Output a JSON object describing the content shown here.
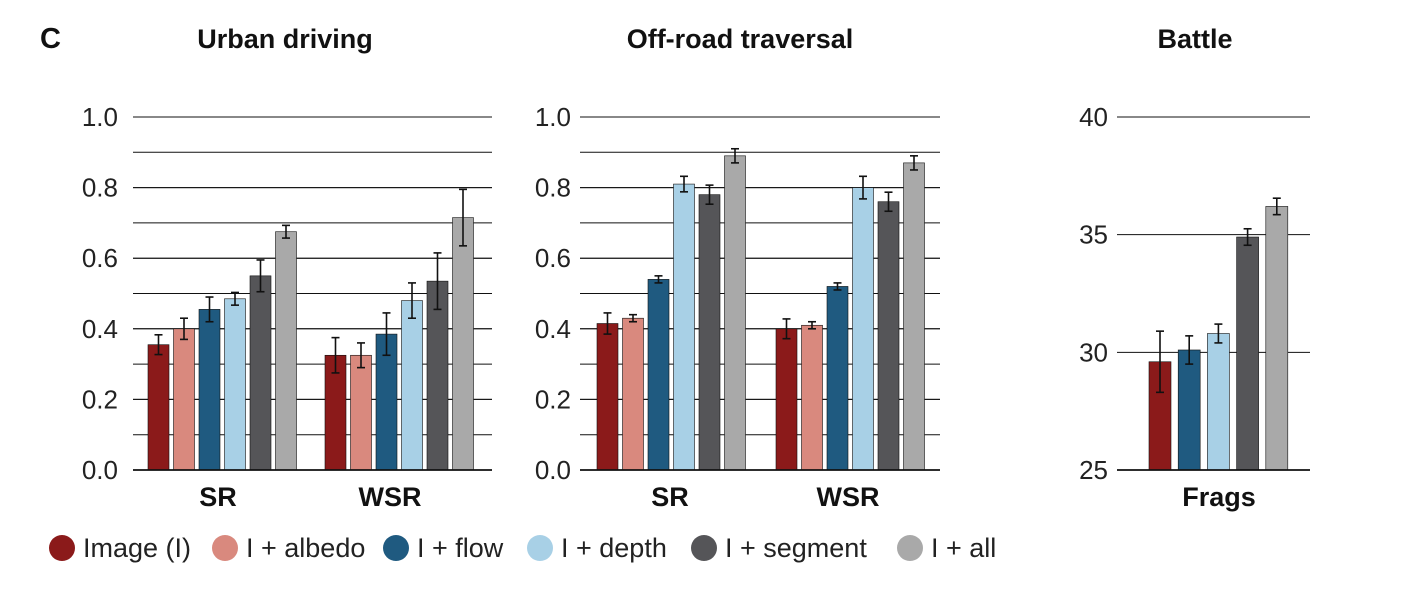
{
  "panel_label": "C",
  "legend": [
    {
      "label": "Image (I)",
      "color": "#8b1a1a"
    },
    {
      "label": "I + albedo",
      "color": "#d9897e"
    },
    {
      "label": "I + flow",
      "color": "#1f5a80"
    },
    {
      "label": "I + depth",
      "color": "#a8d0e6"
    },
    {
      "label": "I + segment",
      "color": "#555558"
    },
    {
      "label": "I + all",
      "color": "#a9a9a9"
    }
  ],
  "chart_data": [
    {
      "type": "bar",
      "title": "Urban driving",
      "ylim": [
        0,
        1.0
      ],
      "yticks": [
        "0.0",
        "0.2",
        "0.4",
        "0.6",
        "0.8",
        "1.0"
      ],
      "ytick_values": [
        0.0,
        0.2,
        0.4,
        0.6,
        0.8,
        1.0
      ],
      "minor_grid_step": 0.1,
      "grid": true,
      "categories": [
        "SR",
        "WSR"
      ],
      "series": [
        {
          "name": "Image (I)",
          "values": [
            0.355,
            0.325
          ],
          "errors": [
            0.028,
            0.05
          ]
        },
        {
          "name": "I + albedo",
          "values": [
            0.4,
            0.325
          ],
          "errors": [
            0.03,
            0.035
          ]
        },
        {
          "name": "I + flow",
          "values": [
            0.455,
            0.385
          ],
          "errors": [
            0.035,
            0.06
          ]
        },
        {
          "name": "I + depth",
          "values": [
            0.485,
            0.48
          ],
          "errors": [
            0.018,
            0.05
          ]
        },
        {
          "name": "I + segment",
          "values": [
            0.55,
            0.535
          ],
          "errors": [
            0.045,
            0.08
          ]
        },
        {
          "name": "I + all",
          "values": [
            0.675,
            0.715
          ],
          "errors": [
            0.018,
            0.08
          ]
        }
      ]
    },
    {
      "type": "bar",
      "title": "Off-road traversal",
      "ylim": [
        0,
        1.0
      ],
      "yticks": [
        "0.0",
        "0.2",
        "0.4",
        "0.6",
        "0.8",
        "1.0"
      ],
      "ytick_values": [
        0.0,
        0.2,
        0.4,
        0.6,
        0.8,
        1.0
      ],
      "minor_grid_step": 0.1,
      "grid": true,
      "categories": [
        "SR",
        "WSR"
      ],
      "series": [
        {
          "name": "Image (I)",
          "values": [
            0.415,
            0.4
          ],
          "errors": [
            0.03,
            0.028
          ]
        },
        {
          "name": "I + albedo",
          "values": [
            0.43,
            0.41
          ],
          "errors": [
            0.01,
            0.01
          ]
        },
        {
          "name": "I + flow",
          "values": [
            0.54,
            0.52
          ],
          "errors": [
            0.01,
            0.01
          ]
        },
        {
          "name": "I + depth",
          "values": [
            0.81,
            0.8
          ],
          "errors": [
            0.022,
            0.032
          ]
        },
        {
          "name": "I + segment",
          "values": [
            0.78,
            0.76
          ],
          "errors": [
            0.027,
            0.027
          ]
        },
        {
          "name": "I + all",
          "values": [
            0.89,
            0.87
          ],
          "errors": [
            0.02,
            0.02
          ]
        }
      ]
    },
    {
      "type": "bar",
      "title": "Battle",
      "ylim": [
        25,
        40
      ],
      "yticks": [
        "25",
        "30",
        "35",
        "40"
      ],
      "ytick_values": [
        25,
        30,
        35,
        40
      ],
      "grid": true,
      "categories": [
        "Frags"
      ],
      "series": [
        {
          "name": "Image (I)",
          "values": [
            29.6
          ],
          "errors": [
            1.3
          ]
        },
        {
          "name": "I + flow",
          "values": [
            30.1
          ],
          "errors": [
            0.6
          ]
        },
        {
          "name": "I + depth",
          "values": [
            30.8
          ],
          "errors": [
            0.4
          ]
        },
        {
          "name": "I + segment",
          "values": [
            34.9
          ],
          "errors": [
            0.35
          ]
        },
        {
          "name": "I + all",
          "values": [
            36.2
          ],
          "errors": [
            0.35
          ]
        }
      ]
    }
  ]
}
